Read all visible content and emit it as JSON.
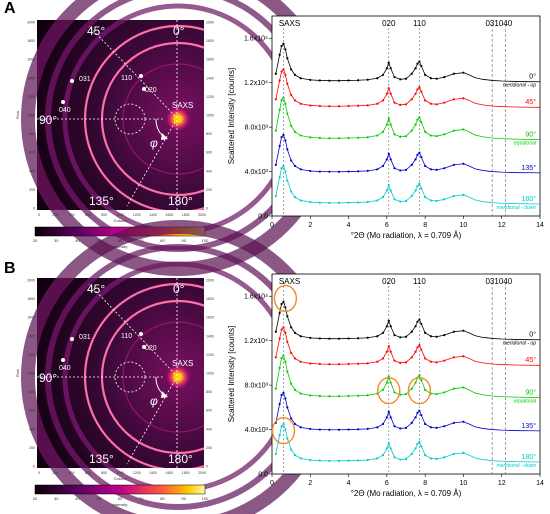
{
  "panels": [
    {
      "label": "A",
      "pattern": {
        "angles": [
          "45°",
          "0°",
          "90°",
          "135°",
          "180°"
        ],
        "phi": "φ",
        "saxs": "SAXS",
        "rings": [
          "110",
          "020",
          "031",
          "040"
        ],
        "y_ticks": [
          "2000",
          "1800",
          "1600",
          "1400",
          "1200",
          "1000",
          "800",
          "600",
          "400",
          "200",
          "0"
        ],
        "x_ticks": [
          "0",
          "200",
          "400",
          "600",
          "800",
          "1000",
          "1200",
          "1400",
          "1600",
          "1800",
          "2000"
        ],
        "x_axis_label": "Column",
        "y_axis_label": "Row",
        "colorbar_ticks": [
          "20",
          "30",
          "40",
          "50",
          "60",
          "70",
          "80",
          "90",
          "100"
        ],
        "colorbar_label": "Intensity"
      },
      "chart_data": {
        "type": "line",
        "xlabel": "°2Θ (Mo radiation, λ = 0.709 Å)",
        "ylabel": "Scattered Intensity [counts]",
        "xlim": [
          0,
          14
        ],
        "ylim": [
          0,
          18000
        ],
        "x_ticks": [
          "0",
          "2",
          "4",
          "6",
          "8",
          "10",
          "12",
          "14"
        ],
        "y_ticks": [
          "0.0",
          "4.0x10³",
          "8.0x10³",
          "1.2x10⁴",
          "1.6x10⁴"
        ],
        "peak_labels": [
          "SAXS",
          "020",
          "110",
          "031",
          "040"
        ],
        "peak_positions": [
          0.6,
          6.1,
          7.7,
          11.5,
          12.2
        ],
        "series": [
          {
            "name": "0°",
            "note": "meridional - up",
            "color": "#000000",
            "offset": 12000,
            "scale": 1.0
          },
          {
            "name": "45°",
            "color": "#ff0000",
            "offset": 9700,
            "scale": 1.0
          },
          {
            "name": "90°",
            "note": "equatorial",
            "color": "#00cc00",
            "offset": 6800,
            "scale": 1.1
          },
          {
            "name": "135°",
            "color": "#0000cc",
            "offset": 3800,
            "scale": 1.0
          },
          {
            "name": "180°",
            "note": "meridional - down",
            "color": "#00cccc",
            "offset": 1000,
            "scale": 1.0
          }
        ],
        "profile_x": [
          0.2,
          0.4,
          0.5,
          0.6,
          0.7,
          0.8,
          1.0,
          1.2,
          1.5,
          2.0,
          2.5,
          3.0,
          3.5,
          4.0,
          4.5,
          5.0,
          5.5,
          5.8,
          6.0,
          6.1,
          6.2,
          6.4,
          6.7,
          7.0,
          7.3,
          7.5,
          7.6,
          7.7,
          7.8,
          8.0,
          8.3,
          8.6,
          9.0,
          9.5,
          10.0,
          10.3,
          10.6,
          11.0,
          11.5,
          12.0,
          12.5,
          13.0,
          13.5,
          14.0
        ],
        "profile_y": [
          800,
          2500,
          3300,
          3500,
          3000,
          2200,
          1200,
          700,
          400,
          250,
          200,
          180,
          180,
          200,
          220,
          260,
          400,
          700,
          1300,
          1800,
          1300,
          500,
          300,
          350,
          800,
          1300,
          1700,
          1900,
          1500,
          700,
          400,
          350,
          500,
          800,
          900,
          700,
          450,
          300,
          200,
          150,
          120,
          100,
          90,
          80
        ]
      }
    },
    {
      "label": "B",
      "pattern": {
        "angles": [
          "45°",
          "0°",
          "90°",
          "135°",
          "180°"
        ],
        "phi": "φ",
        "saxs": "SAXS",
        "rings": [
          "110",
          "020",
          "031",
          "040"
        ],
        "y_ticks": [
          "2000",
          "1800",
          "1600",
          "1400",
          "1200",
          "1000",
          "800",
          "600",
          "400",
          "200",
          "0"
        ],
        "x_ticks": [
          "0",
          "200",
          "400",
          "600",
          "800",
          "1000",
          "1200",
          "1400",
          "1600",
          "1800",
          "2000"
        ],
        "x_axis_label": "Column",
        "y_axis_label": "Row",
        "colorbar_ticks": [
          "20",
          "30",
          "40",
          "50",
          "60",
          "70",
          "80",
          "90",
          "100"
        ],
        "colorbar_label": "Intensity"
      },
      "chart_data": {
        "type": "line",
        "xlabel": "°2Θ (Mo radiation, λ = 0.709 Å)",
        "ylabel": "Scattered Intensity [counts]",
        "xlim": [
          0,
          14
        ],
        "ylim": [
          0,
          18000
        ],
        "x_ticks": [
          "0",
          "2",
          "4",
          "6",
          "8",
          "10",
          "12",
          "14"
        ],
        "y_ticks": [
          "0.0",
          "4.0x10³",
          "8.0x10³",
          "1.2x10⁴",
          "1.6x10⁴"
        ],
        "peak_labels": [
          "SAXS",
          "020",
          "110",
          "031",
          "040"
        ],
        "peak_positions": [
          0.6,
          6.1,
          7.7,
          11.5,
          12.2
        ],
        "series": [
          {
            "name": "0°",
            "note": "meridional - up",
            "color": "#000000",
            "offset": 12000,
            "scale": 1.0
          },
          {
            "name": "45°",
            "color": "#ff0000",
            "offset": 9700,
            "scale": 1.0
          },
          {
            "name": "90°",
            "note": "equatorial",
            "color": "#00cc00",
            "offset": 6800,
            "scale": 1.1
          },
          {
            "name": "135°",
            "color": "#0000cc",
            "offset": 3800,
            "scale": 1.0
          },
          {
            "name": "180°",
            "note": "meridional - down",
            "color": "#00cccc",
            "offset": 1000,
            "scale": 1.0
          }
        ],
        "highlight_circles": [
          {
            "x": 0.7,
            "y": 15800
          },
          {
            "x": 0.6,
            "y": 3900
          },
          {
            "x": 6.1,
            "y": 7500
          },
          {
            "x": 7.7,
            "y": 7500
          }
        ],
        "profile_x": [
          0.2,
          0.4,
          0.5,
          0.6,
          0.7,
          0.8,
          1.0,
          1.2,
          1.5,
          2.0,
          2.5,
          3.0,
          3.5,
          4.0,
          4.5,
          5.0,
          5.5,
          5.8,
          6.0,
          6.1,
          6.2,
          6.4,
          6.7,
          7.0,
          7.3,
          7.5,
          7.6,
          7.7,
          7.8,
          8.0,
          8.3,
          8.6,
          9.0,
          9.5,
          10.0,
          10.3,
          10.6,
          11.0,
          11.5,
          12.0,
          12.5,
          13.0,
          13.5,
          14.0
        ],
        "profile_y": [
          800,
          2500,
          3300,
          3500,
          3000,
          2200,
          1200,
          700,
          400,
          250,
          200,
          180,
          180,
          200,
          220,
          260,
          400,
          700,
          1300,
          1800,
          1300,
          500,
          300,
          350,
          800,
          1300,
          1700,
          1900,
          1500,
          700,
          400,
          350,
          500,
          800,
          900,
          700,
          450,
          300,
          200,
          150,
          120,
          100,
          90,
          80
        ]
      }
    }
  ],
  "colors": {
    "ring": "#ff6fa8",
    "beam_center": "#ffd000",
    "highlight": "#f28a26",
    "detector_bg": "#1a0014"
  }
}
